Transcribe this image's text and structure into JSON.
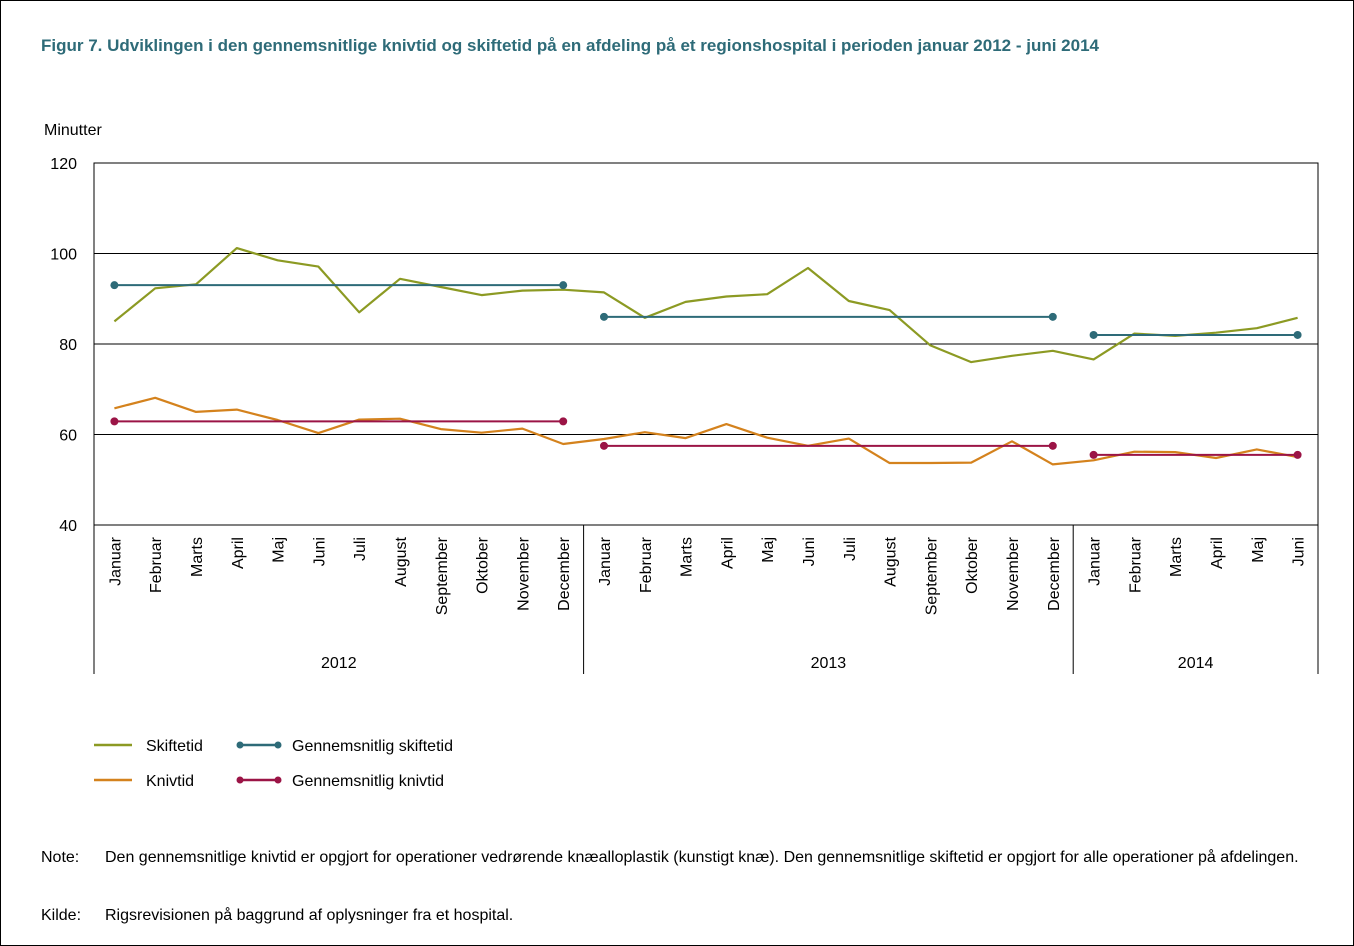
{
  "title": "Figur 7. Udviklingen i den gennemsnitlige knivtid og skiftetid på en afdeling på et regionshospital i perioden januar 2012 - juni 2014",
  "note_label": "Note:",
  "note_text": "Den gennemsnitlige knivtid er opgjort for operationer vedrørende knæalloplastik (kunstigt knæ). Den gennemsnitlige skiftetid er opgjort for alle operationer på afdelingen.",
  "source_label": "Kilde:",
  "source_text": "Rigsrevisionen på baggrund af oplysninger fra et hospital.",
  "colors": {
    "skiftetid": "#8c9a23",
    "gennemsnitlig_skiftetid": "#2e6b78",
    "knivtid": "#d4821d",
    "gennemsnitlig_knivtid": "#9b1446",
    "title": "#2e6b78"
  },
  "chart_data": {
    "type": "line",
    "ylabel": "Minutter",
    "ylim": [
      40,
      120
    ],
    "yticks": [
      40,
      60,
      80,
      100,
      120
    ],
    "grid": "horizontal",
    "legend_position": "bottom-left",
    "categories": [
      "Januar",
      "Februar",
      "Marts",
      "April",
      "Maj",
      "Juni",
      "Juli",
      "August",
      "September",
      "Oktober",
      "November",
      "December",
      "Januar",
      "Februar",
      "Marts",
      "April",
      "Maj",
      "Juni",
      "Juli",
      "August",
      "September",
      "Oktober",
      "November",
      "December",
      "Januar",
      "Februar",
      "Marts",
      "April",
      "Maj",
      "Juni"
    ],
    "groups": [
      {
        "label": "2012",
        "count": 12
      },
      {
        "label": "2013",
        "count": 12
      },
      {
        "label": "2014",
        "count": 6
      }
    ],
    "series": [
      {
        "name": "Skiftetid",
        "color_key": "skiftetid",
        "markers": false,
        "values": [
          85,
          92.3,
          93.2,
          101.2,
          98.5,
          97.1,
          87,
          94.4,
          92.6,
          90.8,
          91.8,
          92,
          91.4,
          85.8,
          89.3,
          90.5,
          91,
          96.8,
          89.5,
          87.5,
          79.7,
          76,
          77.4,
          78.5,
          76.6,
          82.3,
          81.8,
          82.5,
          83.5,
          85.8
        ]
      },
      {
        "name": "Knivtid",
        "color_key": "knivtid",
        "markers": false,
        "values": [
          65.8,
          68.1,
          65,
          65.5,
          63.2,
          60.3,
          63.3,
          63.5,
          61.2,
          60.4,
          61.3,
          57.9,
          59,
          60.5,
          59.2,
          62.3,
          59.3,
          57.5,
          59.1,
          53.7,
          53.7,
          53.8,
          58.5,
          53.4,
          54.3,
          56.2,
          56.1,
          54.8,
          56.7,
          55
        ]
      },
      {
        "name": "Gennemsnitlig skiftetid",
        "color_key": "gennemsnitlig_skiftetid",
        "markers": true,
        "segments": [
          {
            "from": 0,
            "to": 11,
            "value": 93
          },
          {
            "from": 12,
            "to": 23,
            "value": 86
          },
          {
            "from": 24,
            "to": 29,
            "value": 82
          }
        ]
      },
      {
        "name": "Gennemsnitlig knivtid",
        "color_key": "gennemsnitlig_knivtid",
        "markers": true,
        "segments": [
          {
            "from": 0,
            "to": 11,
            "value": 62.9
          },
          {
            "from": 12,
            "to": 23,
            "value": 57.5
          },
          {
            "from": 24,
            "to": 29,
            "value": 55.5
          }
        ]
      }
    ]
  }
}
